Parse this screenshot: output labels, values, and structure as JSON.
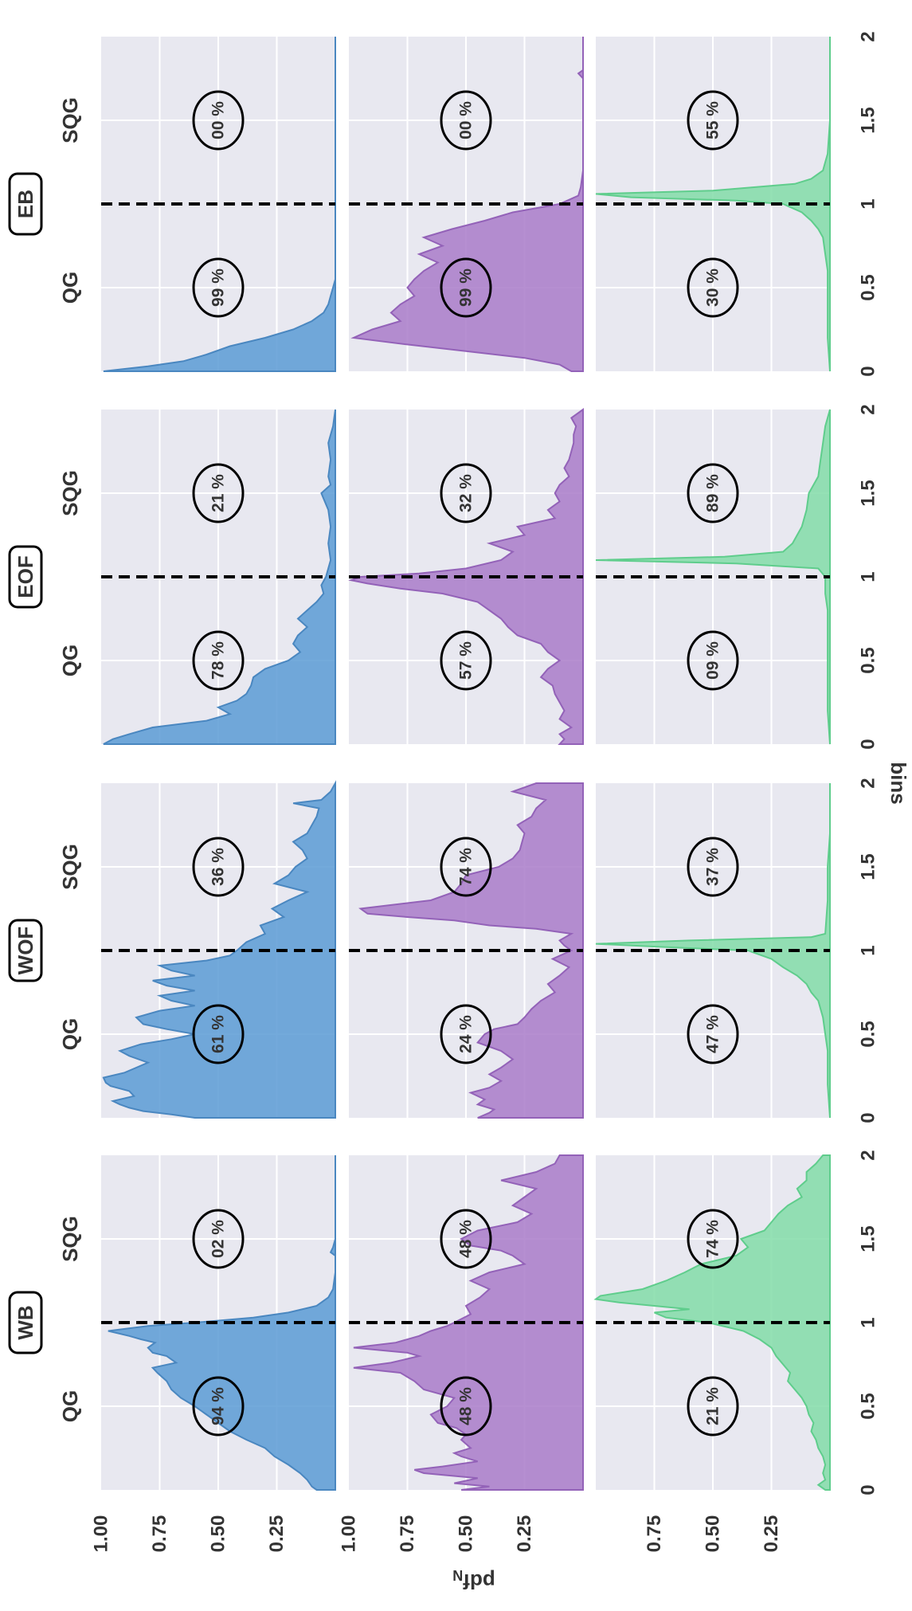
{
  "chart_data": {
    "type": "area",
    "orientation": "rotated-90-ccw",
    "ylabel": "pdf",
    "ylabel_subscript": "N",
    "xlabel": "bins",
    "xlim": [
      0,
      2
    ],
    "ylim": [
      0,
      1
    ],
    "yticks": [
      "1.00",
      "0.75",
      "0.50",
      "0.25"
    ],
    "x_ticks": [
      "0",
      "0.5",
      "1",
      "1.5",
      "2"
    ],
    "column_titles": [
      "WB",
      "WOF",
      "EOF",
      "EB"
    ],
    "region_labels": {
      "left": "QG",
      "right": "SQG"
    },
    "threshold_x": 1,
    "row_colors": [
      "#5b9bd5",
      "#a97bc9",
      "#82dca8"
    ],
    "row_edge_colors": [
      "#4a87c0",
      "#9362b8",
      "#5fcd8c"
    ],
    "background": "#e8e8f0",
    "grid": true,
    "panels": [
      [
        {
          "qg": "94 %",
          "sqg": "02 %",
          "x": [
            0,
            0.02,
            0.06,
            0.1,
            0.15,
            0.2,
            0.25,
            0.3,
            0.35,
            0.4,
            0.45,
            0.5,
            0.55,
            0.6,
            0.65,
            0.7,
            0.73,
            0.76,
            0.8,
            0.82,
            0.85,
            0.88,
            0.9,
            0.92,
            0.95,
            0.98,
            1.0,
            1.03,
            1.06,
            1.1,
            1.15,
            1.2,
            1.3,
            1.4,
            1.42,
            1.45,
            1.5,
            1.6,
            1.8,
            2.0
          ],
          "y": [
            0.08,
            0.1,
            0.12,
            0.15,
            0.2,
            0.26,
            0.3,
            0.38,
            0.45,
            0.5,
            0.55,
            0.6,
            0.66,
            0.7,
            0.72,
            0.76,
            0.78,
            0.68,
            0.72,
            0.78,
            0.8,
            0.77,
            0.83,
            0.88,
            0.97,
            0.8,
            0.6,
            0.35,
            0.2,
            0.08,
            0.03,
            0.01,
            0.0,
            0.0,
            0.02,
            0.01,
            0.0,
            0.0,
            0.0,
            0.0
          ]
        },
        {
          "qg": "61 %",
          "sqg": "36 %",
          "x": [
            0,
            0.02,
            0.04,
            0.06,
            0.08,
            0.1,
            0.13,
            0.16,
            0.19,
            0.21,
            0.24,
            0.27,
            0.3,
            0.33,
            0.37,
            0.4,
            0.44,
            0.47,
            0.5,
            0.53,
            0.56,
            0.6,
            0.64,
            0.67,
            0.7,
            0.73,
            0.76,
            0.79,
            0.82,
            0.85,
            0.88,
            0.91,
            0.94,
            0.97,
            1.0,
            1.05,
            1.1,
            1.15,
            1.2,
            1.25,
            1.3,
            1.35,
            1.4,
            1.45,
            1.5,
            1.55,
            1.6,
            1.65,
            1.7,
            1.75,
            1.8,
            1.85,
            1.88,
            1.9,
            1.95,
            2.0
          ],
          "y": [
            0.6,
            0.7,
            0.82,
            0.88,
            0.92,
            0.95,
            0.86,
            0.88,
            0.96,
            0.98,
            0.99,
            0.9,
            0.85,
            0.8,
            0.88,
            0.92,
            0.83,
            0.7,
            0.6,
            0.72,
            0.82,
            0.85,
            0.75,
            0.6,
            0.7,
            0.75,
            0.6,
            0.72,
            0.78,
            0.6,
            0.7,
            0.75,
            0.55,
            0.45,
            0.42,
            0.38,
            0.3,
            0.32,
            0.22,
            0.27,
            0.2,
            0.12,
            0.26,
            0.2,
            0.17,
            0.12,
            0.14,
            0.18,
            0.12,
            0.1,
            0.08,
            0.07,
            0.18,
            0.06,
            0.02,
            0.0
          ]
        },
        {
          "qg": "78 %",
          "sqg": "21 %",
          "x": [
            0,
            0.03,
            0.06,
            0.1,
            0.14,
            0.18,
            0.22,
            0.26,
            0.3,
            0.35,
            0.4,
            0.45,
            0.5,
            0.55,
            0.6,
            0.65,
            0.7,
            0.75,
            0.8,
            0.85,
            0.9,
            0.95,
            1.0,
            1.1,
            1.2,
            1.3,
            1.4,
            1.5,
            1.55,
            1.6,
            1.7,
            1.8,
            1.9,
            2.0
          ],
          "y": [
            0.99,
            0.95,
            0.88,
            0.78,
            0.55,
            0.45,
            0.5,
            0.42,
            0.38,
            0.36,
            0.35,
            0.3,
            0.2,
            0.15,
            0.18,
            0.16,
            0.12,
            0.16,
            0.12,
            0.08,
            0.05,
            0.06,
            0.04,
            0.02,
            0.03,
            0.02,
            0.03,
            0.06,
            0.02,
            0.03,
            0.02,
            0.03,
            0.01,
            0.0
          ]
        },
        {
          "qg": "99 %",
          "sqg": "00 %",
          "x": [
            0,
            0.03,
            0.06,
            0.1,
            0.15,
            0.2,
            0.25,
            0.3,
            0.35,
            0.4,
            0.45,
            0.5,
            0.55,
            0.6,
            0.8,
            1.0,
            1.2,
            1.5,
            2.0
          ],
          "y": [
            0.99,
            0.8,
            0.65,
            0.55,
            0.45,
            0.3,
            0.18,
            0.1,
            0.05,
            0.03,
            0.02,
            0.01,
            0.0,
            0.0,
            0.0,
            0.0,
            0.0,
            0.0,
            0.0
          ]
        }
      ],
      [
        {
          "qg": "48 %",
          "sqg": "48 %",
          "x": [
            0,
            0.02,
            0.04,
            0.07,
            0.1,
            0.12,
            0.14,
            0.17,
            0.2,
            0.22,
            0.25,
            0.3,
            0.33,
            0.37,
            0.4,
            0.45,
            0.5,
            0.55,
            0.6,
            0.65,
            0.7,
            0.73,
            0.76,
            0.8,
            0.82,
            0.85,
            0.88,
            0.92,
            0.95,
            0.98,
            1.0,
            1.05,
            1.1,
            1.15,
            1.2,
            1.25,
            1.3,
            1.35,
            1.4,
            1.43,
            1.46,
            1.5,
            1.55,
            1.6,
            1.65,
            1.7,
            1.75,
            1.8,
            1.85,
            1.9,
            1.95,
            2.0
          ],
          "y": [
            0.52,
            0.4,
            0.55,
            0.45,
            0.68,
            0.72,
            0.6,
            0.45,
            0.52,
            0.55,
            0.48,
            0.52,
            0.5,
            0.54,
            0.62,
            0.65,
            0.58,
            0.55,
            0.68,
            0.72,
            0.78,
            0.98,
            0.82,
            0.7,
            0.75,
            0.98,
            0.8,
            0.7,
            0.65,
            0.58,
            0.55,
            0.48,
            0.5,
            0.44,
            0.4,
            0.48,
            0.4,
            0.25,
            0.3,
            0.35,
            0.48,
            0.52,
            0.45,
            0.28,
            0.22,
            0.3,
            0.25,
            0.2,
            0.35,
            0.2,
            0.12,
            0.1
          ]
        },
        {
          "qg": "24 %",
          "sqg": "74 %",
          "x": [
            0,
            0.03,
            0.05,
            0.08,
            0.11,
            0.15,
            0.18,
            0.22,
            0.26,
            0.3,
            0.35,
            0.4,
            0.45,
            0.5,
            0.53,
            0.56,
            0.6,
            0.65,
            0.7,
            0.75,
            0.8,
            0.85,
            0.9,
            0.95,
            1.0,
            1.03,
            1.06,
            1.1,
            1.13,
            1.15,
            1.18,
            1.2,
            1.22,
            1.25,
            1.3,
            1.35,
            1.4,
            1.45,
            1.5,
            1.55,
            1.6,
            1.7,
            1.75,
            1.8,
            1.85,
            1.9,
            1.95,
            2.0
          ],
          "y": [
            0.45,
            0.4,
            0.38,
            0.45,
            0.42,
            0.48,
            0.4,
            0.35,
            0.4,
            0.35,
            0.3,
            0.35,
            0.45,
            0.42,
            0.38,
            0.28,
            0.25,
            0.22,
            0.18,
            0.12,
            0.15,
            0.1,
            0.06,
            0.13,
            0.05,
            0.08,
            0.1,
            0.05,
            0.2,
            0.4,
            0.55,
            0.75,
            0.92,
            0.95,
            0.65,
            0.55,
            0.52,
            0.5,
            0.36,
            0.3,
            0.27,
            0.25,
            0.28,
            0.22,
            0.2,
            0.16,
            0.3,
            0.2
          ]
        },
        {
          "qg": "57 %",
          "sqg": "32 %",
          "x": [
            0,
            0.03,
            0.06,
            0.1,
            0.15,
            0.2,
            0.25,
            0.3,
            0.35,
            0.4,
            0.45,
            0.5,
            0.55,
            0.6,
            0.65,
            0.7,
            0.75,
            0.8,
            0.85,
            0.9,
            0.93,
            0.96,
            0.98,
            1.0,
            1.02,
            1.05,
            1.1,
            1.15,
            1.2,
            1.25,
            1.3,
            1.35,
            1.4,
            1.45,
            1.5,
            1.55,
            1.6,
            1.65,
            1.7,
            1.75,
            1.8,
            1.85,
            1.9,
            1.95,
            2.0
          ],
          "y": [
            0.1,
            0.08,
            0.1,
            0.05,
            0.1,
            0.08,
            0.1,
            0.12,
            0.13,
            0.18,
            0.15,
            0.1,
            0.15,
            0.18,
            0.28,
            0.32,
            0.35,
            0.4,
            0.45,
            0.6,
            0.78,
            0.92,
            0.99,
            0.95,
            0.7,
            0.5,
            0.35,
            0.3,
            0.4,
            0.25,
            0.28,
            0.12,
            0.15,
            0.1,
            0.12,
            0.1,
            0.06,
            0.08,
            0.06,
            0.05,
            0.04,
            0.04,
            0.03,
            0.05,
            0.0
          ]
        },
        {
          "qg": "99 %",
          "sqg": "00 %",
          "x": [
            0,
            0.04,
            0.08,
            0.12,
            0.16,
            0.2,
            0.25,
            0.3,
            0.35,
            0.4,
            0.45,
            0.5,
            0.55,
            0.6,
            0.65,
            0.7,
            0.75,
            0.8,
            0.85,
            0.9,
            0.95,
            1.0,
            1.05,
            1.1,
            1.2,
            1.5,
            1.75,
            1.78,
            1.8,
            2.0
          ],
          "y": [
            0.05,
            0.1,
            0.25,
            0.5,
            0.75,
            0.98,
            0.9,
            0.78,
            0.82,
            0.78,
            0.72,
            0.75,
            0.72,
            0.68,
            0.62,
            0.7,
            0.6,
            0.68,
            0.56,
            0.42,
            0.3,
            0.1,
            0.02,
            0.01,
            0.0,
            0.0,
            0.0,
            0.02,
            0.0,
            0.0
          ]
        }
      ],
      [
        {
          "qg": "21 %",
          "sqg": "74 %",
          "x": [
            0,
            0.03,
            0.06,
            0.1,
            0.15,
            0.2,
            0.25,
            0.3,
            0.35,
            0.4,
            0.45,
            0.5,
            0.55,
            0.6,
            0.65,
            0.7,
            0.75,
            0.8,
            0.85,
            0.9,
            0.95,
            1.0,
            1.03,
            1.06,
            1.08,
            1.1,
            1.12,
            1.14,
            1.16,
            1.2,
            1.25,
            1.3,
            1.35,
            1.4,
            1.45,
            1.5,
            1.55,
            1.6,
            1.65,
            1.7,
            1.75,
            1.8,
            1.85,
            1.9,
            1.95,
            2.0
          ],
          "y": [
            0.02,
            0.05,
            0.02,
            0.03,
            0.02,
            0.03,
            0.05,
            0.06,
            0.08,
            0.07,
            0.09,
            0.1,
            0.12,
            0.15,
            0.18,
            0.17,
            0.2,
            0.23,
            0.25,
            0.3,
            0.37,
            0.52,
            0.7,
            0.75,
            0.6,
            0.75,
            0.9,
            1.0,
            0.98,
            0.8,
            0.7,
            0.62,
            0.55,
            0.4,
            0.35,
            0.38,
            0.28,
            0.25,
            0.22,
            0.18,
            0.12,
            0.14,
            0.1,
            0.1,
            0.06,
            0.03
          ]
        },
        {
          "qg": "47 %",
          "sqg": "37 %",
          "x": [
            0,
            0.2,
            0.4,
            0.5,
            0.6,
            0.7,
            0.75,
            0.8,
            0.85,
            0.9,
            0.95,
            1.0,
            1.02,
            1.04,
            1.06,
            1.08,
            1.1,
            1.3,
            1.5,
            1.7,
            2.0
          ],
          "y": [
            0.0,
            0.01,
            0.01,
            0.02,
            0.03,
            0.05,
            0.08,
            0.1,
            0.14,
            0.2,
            0.25,
            0.35,
            0.7,
            1.0,
            0.6,
            0.08,
            0.02,
            0.01,
            0.01,
            0.0,
            0.0
          ]
        },
        {
          "qg": "09 %",
          "sqg": "89 %",
          "x": [
            0,
            0.2,
            0.4,
            0.6,
            0.8,
            0.9,
            1.0,
            1.05,
            1.08,
            1.1,
            1.12,
            1.15,
            1.2,
            1.3,
            1.4,
            1.5,
            1.6,
            1.7,
            1.8,
            1.9,
            2.0
          ],
          "y": [
            0.0,
            0.01,
            0.01,
            0.01,
            0.01,
            0.02,
            0.02,
            0.05,
            0.4,
            1.0,
            0.45,
            0.2,
            0.16,
            0.12,
            0.1,
            0.09,
            0.05,
            0.04,
            0.03,
            0.02,
            0.0
          ]
        },
        {
          "qg": "30 %",
          "sqg": "55 %",
          "x": [
            0,
            0.2,
            0.4,
            0.6,
            0.7,
            0.8,
            0.85,
            0.9,
            0.95,
            1.0,
            1.02,
            1.04,
            1.06,
            1.08,
            1.12,
            1.15,
            1.2,
            1.25,
            1.3,
            1.5,
            1.7,
            2.0
          ],
          "y": [
            0.0,
            0.01,
            0.01,
            0.01,
            0.02,
            0.03,
            0.05,
            0.08,
            0.12,
            0.2,
            0.4,
            0.85,
            1.0,
            0.5,
            0.15,
            0.08,
            0.03,
            0.02,
            0.01,
            0.0,
            0.0,
            0.0
          ]
        }
      ]
    ]
  }
}
